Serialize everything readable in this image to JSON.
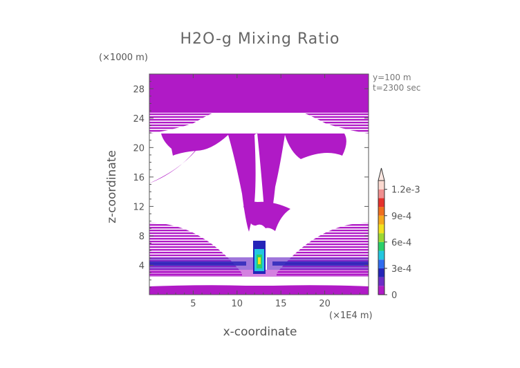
{
  "chart_data": {
    "type": "heatmap",
    "title": "H2O-g Mixing Ratio",
    "xlabel": "x-coordinate",
    "ylabel": "z-coordinate",
    "x_unit": "(×1E4 m)",
    "y_unit": "(×1000 m)",
    "xlim": [
      0,
      25
    ],
    "ylim": [
      0,
      30
    ],
    "x_ticks": [
      5,
      10,
      15,
      20
    ],
    "y_ticks": [
      4,
      8,
      12,
      16,
      20,
      24,
      28
    ],
    "annotations": [
      "y=100 m",
      "t=2300 sec"
    ],
    "colorbar": {
      "min": 0,
      "max": 0.0013,
      "tick_labels": [
        "0",
        "3e-4",
        "6e-4",
        "9e-4",
        "1.2e-3"
      ],
      "tick_values": [
        0,
        0.0003,
        0.0006,
        0.0009,
        0.0012
      ],
      "colors": [
        "#b01ac6",
        "#6c2dc7",
        "#2424b8",
        "#2f6cf0",
        "#23c7e0",
        "#2ad06a",
        "#9bd832",
        "#f2e21e",
        "#f6a81c",
        "#ef6e1e",
        "#e5312c",
        "#f08f8f",
        "#fbd9d0"
      ],
      "extend": "max"
    }
  }
}
